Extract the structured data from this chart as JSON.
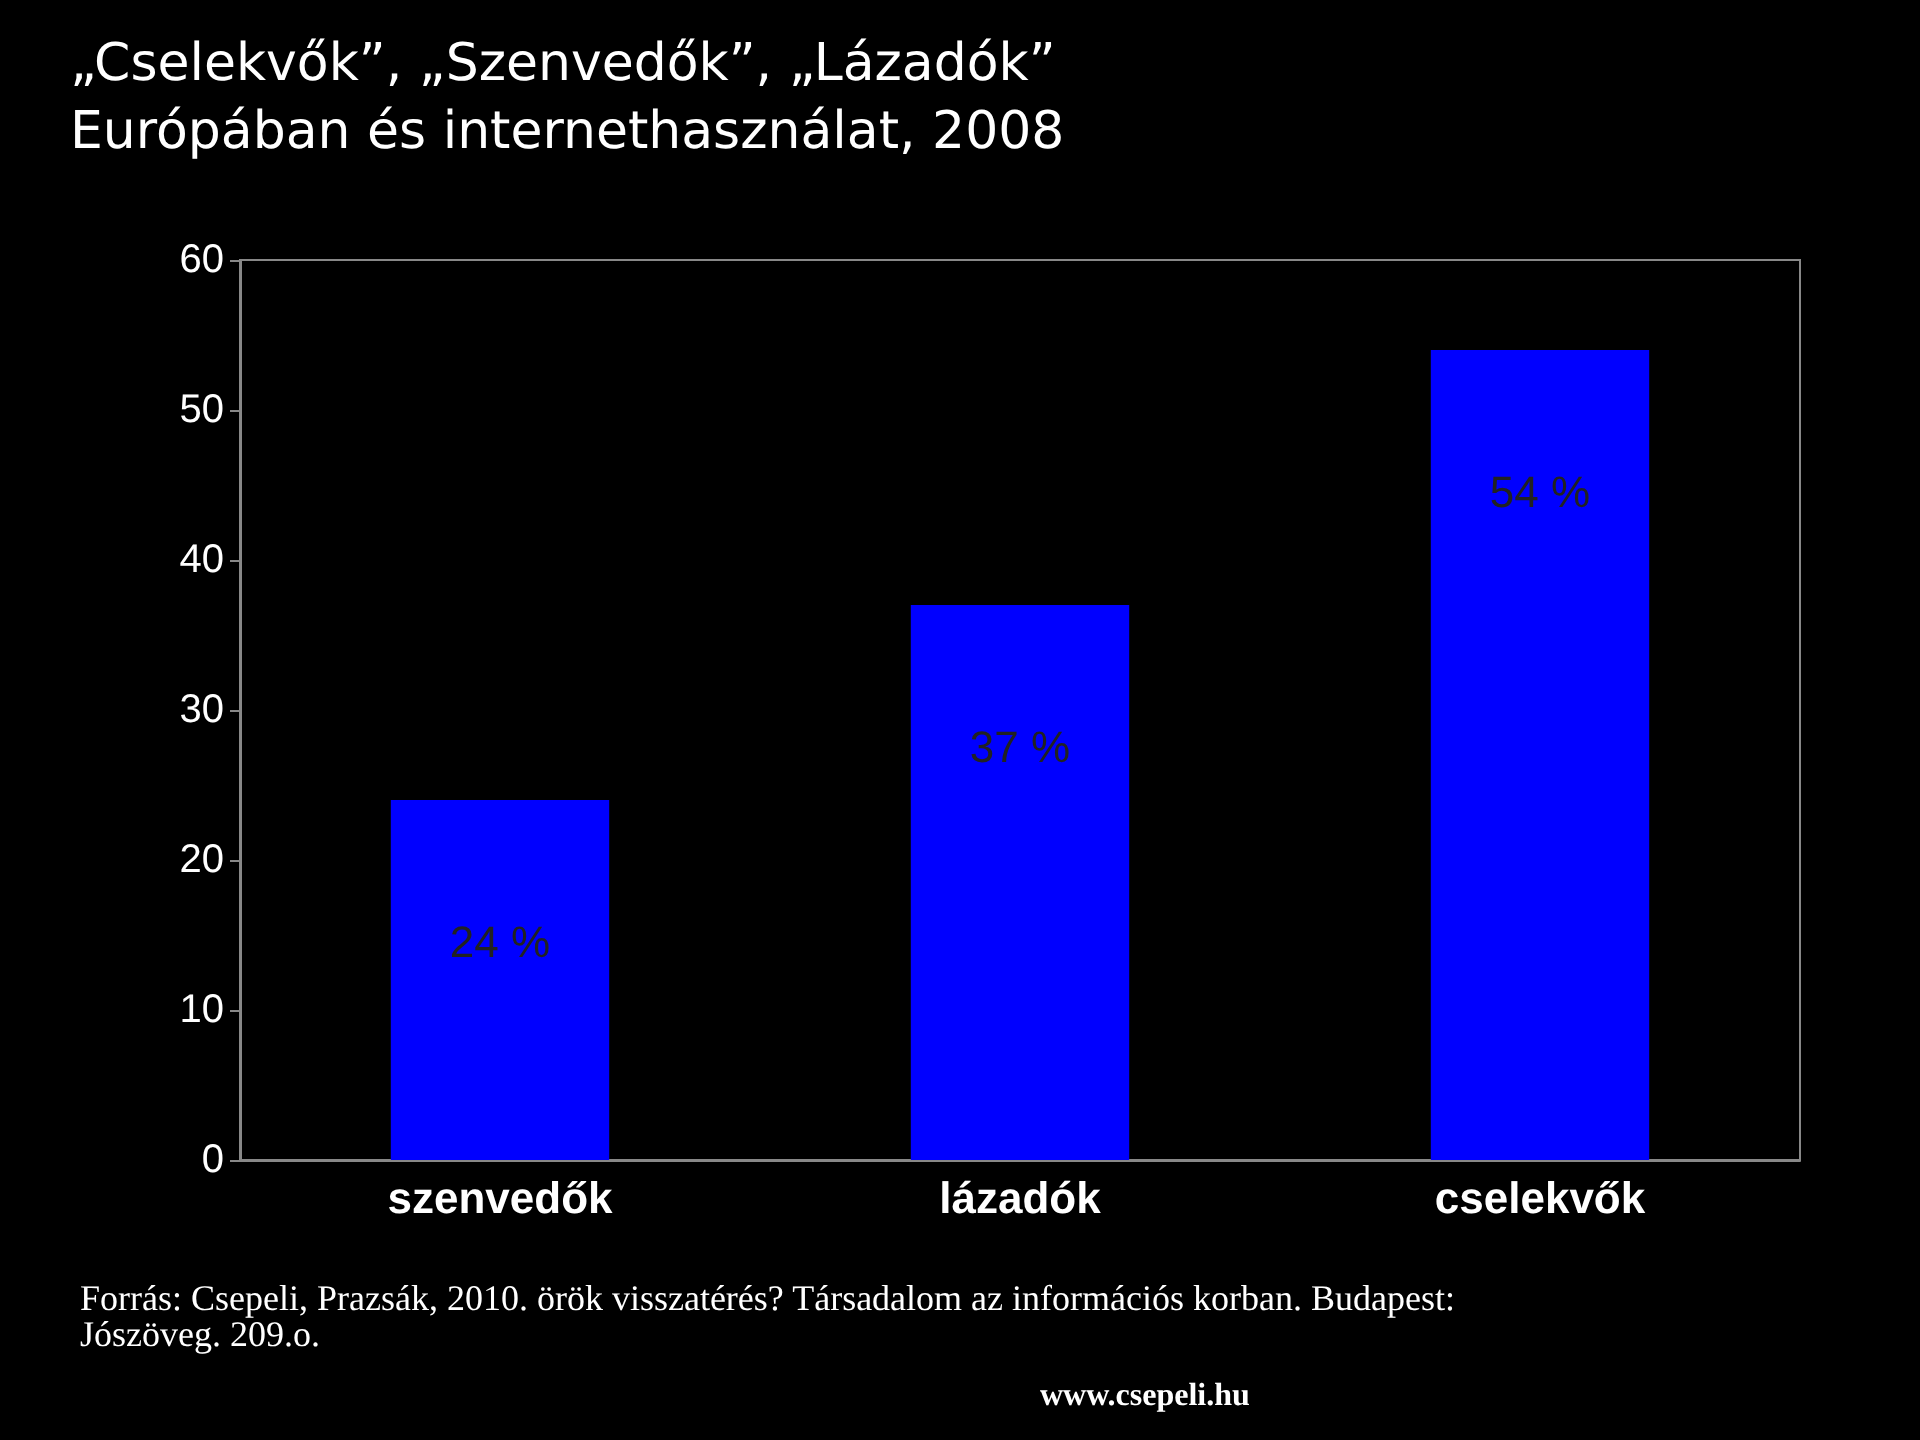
{
  "chart_data": {
    "type": "bar",
    "title": "„Cselekvők”, „Szenvedők”, „Lázadók” Európában és internethasználat, 2008",
    "categories": [
      "szenvedők",
      "lázadók",
      "cselekvők"
    ],
    "values": [
      24,
      37,
      54
    ],
    "color": "#0000ff",
    "value_labels": [
      "24 %",
      "37 %",
      "54 %"
    ],
    "ylim": [
      0,
      60
    ],
    "yticks": [
      0,
      10,
      20,
      30,
      40,
      50,
      60
    ],
    "grid": false,
    "annotations": [
      "Forrás: Csepeli, Prazsák, 2010. örök visszatérés? Társadalom az információs korban. Budapest: Jószöveg. 209.o.",
      "www.csepeli.hu"
    ]
  }
}
